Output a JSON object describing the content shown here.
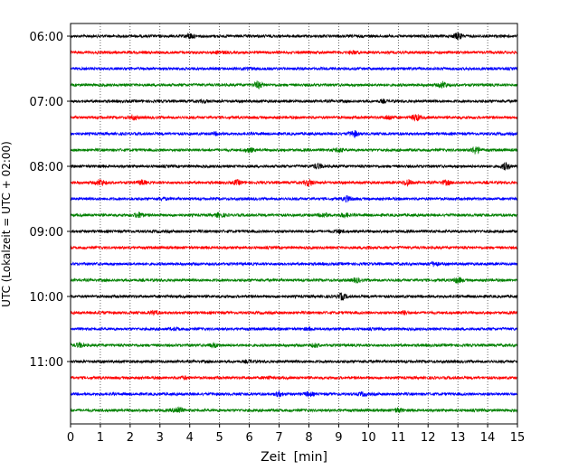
{
  "chart_data": {
    "type": "line",
    "xlabel": "Zeit  [min]",
    "ylabel": "UTC (Lokalzeit = UTC + 02:00)",
    "xlim": [
      0,
      15
    ],
    "x_ticks": [
      0,
      1,
      2,
      3,
      4,
      5,
      6,
      7,
      8,
      9,
      10,
      11,
      12,
      13,
      14,
      15
    ],
    "y_tick_labels": [
      "06:00",
      "07:00",
      "08:00",
      "09:00",
      "10:00",
      "11:00"
    ],
    "trace_interval_minutes": 15,
    "trace_start": "06:00",
    "trace_count": 24,
    "trace_color_cycle": [
      "#000000",
      "#ff0000",
      "#0000ff",
      "#008000"
    ],
    "grid": "vertical-dotted",
    "legend": "none"
  }
}
